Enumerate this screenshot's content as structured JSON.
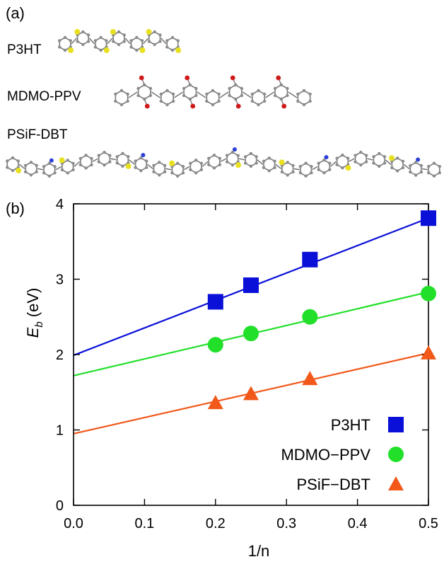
{
  "panels": {
    "a_label": "(a)",
    "b_label": "(b)"
  },
  "molecules": [
    {
      "name": "P3HT"
    },
    {
      "name": "MDMO-PPV"
    },
    {
      "name": "PSiF-DBT"
    }
  ],
  "chart_data": {
    "type": "scatter",
    "xlabel": "1/n",
    "ylabel_main": "E",
    "ylabel_sub": "b",
    "ylabel_unit": " (eV)",
    "xlim": [
      0.0,
      0.5
    ],
    "ylim": [
      0,
      4
    ],
    "xticks": [
      "0.0",
      "0.1",
      "0.2",
      "0.3",
      "0.4",
      "0.5"
    ],
    "yticks": [
      "0",
      "1",
      "2",
      "3",
      "4"
    ],
    "grid": false,
    "legend_position": "bottom-right",
    "series": [
      {
        "name": "P3HT",
        "marker": "square",
        "color": "#0a10d8",
        "x": [
          0.2,
          0.25,
          0.333,
          0.5
        ],
        "y": [
          2.7,
          2.92,
          3.26,
          3.81
        ],
        "fit": [
          [
            0.0,
            1.99
          ],
          [
            0.5,
            3.81
          ]
        ]
      },
      {
        "name": "MDMO−PPV",
        "marker": "circle",
        "color": "#22e02a",
        "x": [
          0.2,
          0.25,
          0.333,
          0.5
        ],
        "y": [
          2.13,
          2.28,
          2.5,
          2.81
        ],
        "fit": [
          [
            0.0,
            1.72
          ],
          [
            0.5,
            2.83
          ]
        ]
      },
      {
        "name": "PSiF−DBT",
        "marker": "triangle",
        "color": "#f2581a",
        "x": [
          0.2,
          0.25,
          0.333,
          0.5
        ],
        "y": [
          1.36,
          1.48,
          1.68,
          2.02
        ],
        "fit": [
          [
            0.0,
            0.95
          ],
          [
            0.5,
            2.02
          ]
        ]
      }
    ]
  }
}
